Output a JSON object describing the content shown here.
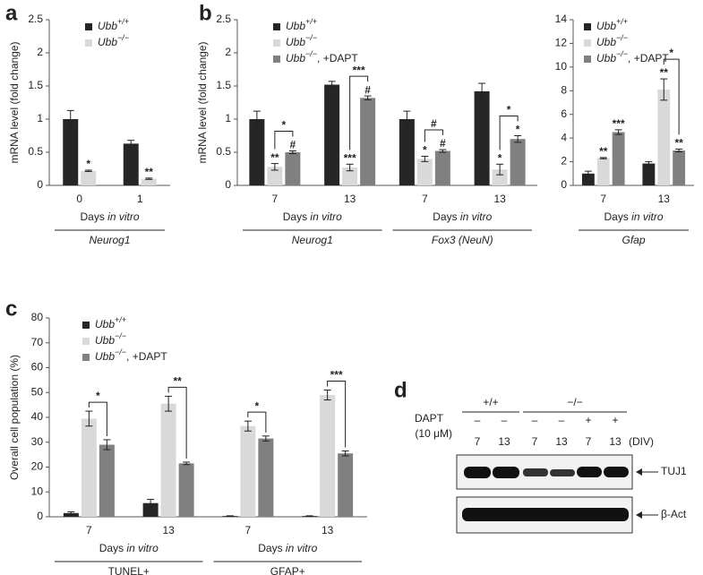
{
  "panel_labels": [
    "a",
    "b",
    "c",
    "d"
  ],
  "chart_data": [
    {
      "type": "bar",
      "ylabel": "mRNA level (fold change)",
      "ylim": [
        0,
        2.5
      ],
      "yticks": [
        0,
        0.5,
        1,
        1.5,
        2,
        2.5
      ],
      "legend": "upper left",
      "categories": [
        "0",
        "1"
      ],
      "group_labels": [
        "Neurog1"
      ],
      "xlabels": [
        "Days in vitro"
      ],
      "italic_groups": true,
      "series": [
        {
          "name": "Ubb+/+",
          "color": "#262626",
          "values": [
            1.0,
            0.63
          ],
          "errors": [
            0.13,
            0.05
          ]
        },
        {
          "name": "Ubb−/−",
          "color": "#d9d9d9",
          "values": [
            0.22,
            0.1
          ],
          "errors": [
            0.01,
            0.01
          ],
          "marks": [
            "*",
            "**"
          ]
        }
      ]
    },
    {
      "type": "bar",
      "ylabel": "mRNA level (fold change)",
      "ylim": [
        0,
        2.5
      ],
      "yticks": [
        0,
        0.5,
        1,
        1.5,
        2,
        2.5
      ],
      "legend": "upper left",
      "categories": [
        "7",
        "13",
        "7",
        "13"
      ],
      "group_labels": [
        "Neurog1",
        "Fox3 (NeuN)"
      ],
      "xlabels": [
        "Days in vitro",
        "Days in vitro"
      ],
      "italic_groups": true,
      "series": [
        {
          "name": "Ubb+/+",
          "color": "#262626",
          "values": [
            1.0,
            1.52,
            1.0,
            1.42
          ],
          "errors": [
            0.12,
            0.05,
            0.12,
            0.12
          ]
        },
        {
          "name": "Ubb−/−",
          "color": "#d9d9d9",
          "values": [
            0.28,
            0.27,
            0.4,
            0.24
          ],
          "errors": [
            0.05,
            0.05,
            0.04,
            0.08
          ],
          "marks": [
            "**",
            "***",
            "*",
            "*"
          ]
        },
        {
          "name": "Ubb−/−, +DAPT",
          "color": "#808080",
          "values": [
            0.5,
            1.32,
            0.52,
            0.7
          ],
          "errors": [
            0.02,
            0.03,
            0.02,
            0.05
          ],
          "marks": [
            "#",
            "#",
            "#",
            "*"
          ]
        }
      ],
      "brackets": [
        {
          "category": 0,
          "series": [
            1,
            2
          ],
          "label": "*"
        },
        {
          "category": 1,
          "series": [
            1,
            2
          ],
          "label": "***"
        },
        {
          "category": 2,
          "series": [
            1,
            2
          ],
          "label": "#"
        },
        {
          "category": 3,
          "series": [
            1,
            2
          ],
          "label": "*"
        }
      ]
    },
    {
      "type": "bar",
      "ylim": [
        0,
        14
      ],
      "yticks": [
        0,
        2,
        4,
        6,
        8,
        10,
        12,
        14
      ],
      "legend": "upper left",
      "categories": [
        "7",
        "13"
      ],
      "group_labels": [
        "Gfap"
      ],
      "xlabels": [
        "Days in vitro"
      ],
      "italic_groups": true,
      "series": [
        {
          "name": "Ubb+/+",
          "color": "#262626",
          "values": [
            1.0,
            1.85
          ],
          "errors": [
            0.2,
            0.15
          ]
        },
        {
          "name": "Ubb−/−",
          "color": "#d9d9d9",
          "values": [
            2.3,
            8.1
          ],
          "errors": [
            0.05,
            0.9
          ],
          "marks": [
            "**",
            "**"
          ]
        },
        {
          "name": "Ubb−/−, +DAPT",
          "color": "#808080",
          "values": [
            4.5,
            2.95
          ],
          "errors": [
            0.2,
            0.12
          ],
          "marks": [
            "***",
            "**"
          ]
        }
      ],
      "brackets": [
        {
          "category": 1,
          "series": [
            1,
            2
          ],
          "label": "*"
        }
      ]
    },
    {
      "type": "bar",
      "ylabel": "Overall cell population (%)",
      "ylim": [
        0,
        80
      ],
      "yticks": [
        0,
        10,
        20,
        30,
        40,
        50,
        60,
        70,
        80
      ],
      "legend": "upper left",
      "categories": [
        "7",
        "13",
        "7",
        "13"
      ],
      "group_labels": [
        "TUNEL+",
        "GFAP+"
      ],
      "xlabels": [
        "Days in vitro",
        "Days in vitro"
      ],
      "italic_groups": false,
      "series": [
        {
          "name": "Ubb+/+",
          "color": "#262626",
          "values": [
            1.5,
            5.5,
            0.3,
            0.3
          ],
          "errors": [
            0.5,
            1.5,
            0.1,
            0.1
          ]
        },
        {
          "name": "Ubb−/−",
          "color": "#d9d9d9",
          "values": [
            39.5,
            45.5,
            36.5,
            49
          ],
          "errors": [
            3,
            3,
            2,
            2
          ]
        },
        {
          "name": "Ubb−/−, +DAPT",
          "color": "#808080",
          "values": [
            29,
            21.5,
            31.5,
            25.5
          ],
          "errors": [
            2,
            0.5,
            1,
            1
          ]
        }
      ],
      "brackets": [
        {
          "category": 0,
          "series": [
            1,
            2
          ],
          "label": "*"
        },
        {
          "category": 1,
          "series": [
            1,
            2
          ],
          "label": "**"
        },
        {
          "category": 2,
          "series": [
            1,
            2
          ],
          "label": "*"
        },
        {
          "category": 3,
          "series": [
            1,
            2
          ],
          "label": "***"
        }
      ]
    }
  ],
  "blot": {
    "genotypes": [
      "+/+",
      "−/−"
    ],
    "treatment": "DAPT",
    "concentration": "(10 μM)",
    "treatments": [
      "–",
      "–",
      "–",
      "–",
      "+",
      "+"
    ],
    "div": [
      "7",
      "13",
      "7",
      "13",
      "7",
      "13"
    ],
    "div_label": "(DIV)",
    "bands": [
      "TUJ1",
      "β-Act"
    ]
  }
}
